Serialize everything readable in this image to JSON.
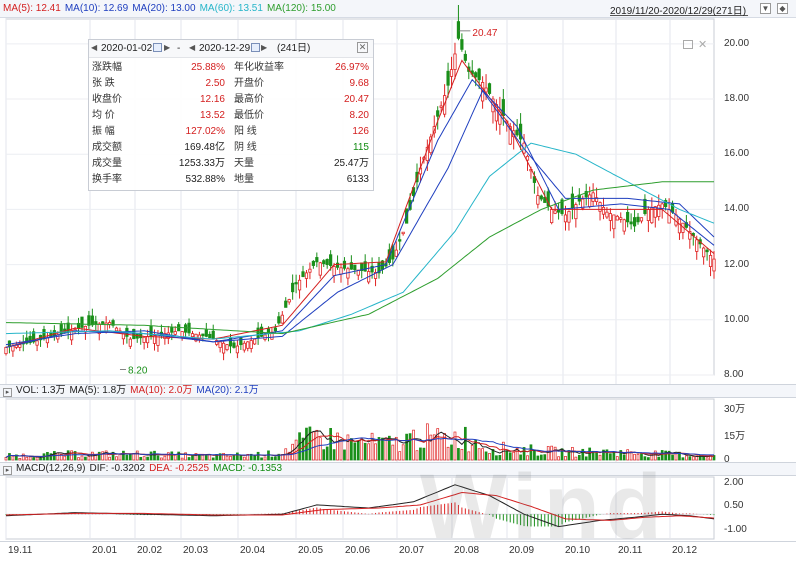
{
  "ma_legend": [
    {
      "label": "MA(5): 12.41",
      "color": "#d42020"
    },
    {
      "label": "MA(10): 12.69",
      "color": "#1f3fbf"
    },
    {
      "label": "MA(20): 13.00",
      "color": "#1f3fbf"
    },
    {
      "label": "MA(60): 13.51",
      "color": "#26b5c9"
    },
    {
      "label": "MA(120): 15.00",
      "color": "#2e9e2e"
    }
  ],
  "date_range": "2019/11/20-2020/12/29(271日)",
  "info_panel": {
    "start_date": "2020-01-02",
    "end_date": "2020-12-29",
    "separator": "-",
    "days": "(241日)",
    "rows": [
      {
        "l1": "涨跌幅",
        "v1": "25.88%",
        "c1": "red",
        "l2": "年化收益率",
        "v2": "26.97%",
        "c2": "red"
      },
      {
        "l1": "张  跌",
        "v1": "2.50",
        "c1": "red",
        "l2": "开盘价",
        "v2": "9.68",
        "c2": "red"
      },
      {
        "l1": "收盘价",
        "v1": "12.16",
        "c1": "red",
        "l2": "最高价",
        "v2": "20.47",
        "c2": "red"
      },
      {
        "l1": "均  价",
        "v1": "13.52",
        "c1": "red",
        "l2": "最低价",
        "v2": "8.20",
        "c2": "red"
      },
      {
        "l1": "振  幅",
        "v1": "127.02%",
        "c1": "red",
        "l2": "阳  线",
        "v2": "126",
        "c2": "red"
      },
      {
        "l1": "成交额",
        "v1": "169.48亿",
        "c1": "dark",
        "l2": "阴  线",
        "v2": "115",
        "c2": "green"
      },
      {
        "l1": "成交量",
        "v1": "1253.33万",
        "c1": "dark",
        "l2": "天量",
        "v2": "25.47万",
        "c2": "dark"
      },
      {
        "l1": "换手率",
        "v1": "532.88%",
        "c1": "dark",
        "l2": "地量",
        "v2": "6133",
        "c2": "dark"
      }
    ]
  },
  "vol_legend": [
    {
      "label": "VOL: 1.3万",
      "color": "#222"
    },
    {
      "label": "MA(5): 1.8万",
      "color": "#222"
    },
    {
      "label": "MA(10): 2.0万",
      "color": "#d42020"
    },
    {
      "label": "MA(20): 2.1万",
      "color": "#1f3fbf"
    }
  ],
  "macd_legend": [
    {
      "label": "MACD(12,26,9)",
      "color": "#222"
    },
    {
      "label": "DIF: -0.3202",
      "color": "#222"
    },
    {
      "label": "DEA: -0.2525",
      "color": "#d42020"
    },
    {
      "label": "MACD: -0.1353",
      "color": "#128c12"
    }
  ],
  "watermark": "Wind",
  "chart_data": {
    "type": "candlestick",
    "price_ticks": [
      "20.00",
      "18.00",
      "16.00",
      "14.00",
      "12.00",
      "10.00",
      "8.00"
    ],
    "price_tick_values": [
      20,
      18,
      16,
      14,
      12,
      10,
      8
    ],
    "price_ylim": [
      8,
      20.9
    ],
    "max_marker": "20.47",
    "min_marker": "8.20",
    "x_tick_labels": [
      "19.11",
      "20.01",
      "20.02",
      "20.03",
      "20.04",
      "20.05",
      "20.06",
      "20.07",
      "20.08",
      "20.09",
      "20.10",
      "20.11",
      "20.12"
    ],
    "vol_ticks": [
      "30万",
      "15万",
      "0"
    ],
    "vol_tick_values": [
      30,
      15,
      0
    ],
    "vol_ylim": [
      0,
      34
    ],
    "macd_ticks": [
      "2.00",
      "0.50",
      "-1.00"
    ],
    "macd_tick_values": [
      2,
      0.5,
      -1
    ],
    "macd_ylim": [
      -1.6,
      2.4
    ],
    "close_path": [
      [
        0,
        9.0
      ],
      [
        8,
        9.2
      ],
      [
        16,
        9.5
      ],
      [
        24,
        9.8
      ],
      [
        30,
        9.9
      ],
      [
        36,
        9.3
      ],
      [
        42,
        9.4
      ],
      [
        50,
        9.6
      ],
      [
        58,
        9.4
      ],
      [
        66,
        9.0
      ],
      [
        72,
        9.3
      ],
      [
        78,
        9.6
      ],
      [
        84,
        11.3
      ],
      [
        90,
        12.1
      ],
      [
        96,
        11.9
      ],
      [
        102,
        11.8
      ],
      [
        108,
        11.7
      ],
      [
        112,
        12.2
      ],
      [
        116,
        13.5
      ],
      [
        120,
        15.5
      ],
      [
        124,
        17.0
      ],
      [
        128,
        18.5
      ],
      [
        131,
        20.2
      ],
      [
        134,
        19.0
      ],
      [
        138,
        18.6
      ],
      [
        142,
        17.8
      ],
      [
        146,
        17.0
      ],
      [
        150,
        16.4
      ],
      [
        154,
        14.5
      ],
      [
        158,
        14.0
      ],
      [
        162,
        13.8
      ],
      [
        166,
        14.3
      ],
      [
        170,
        14.6
      ],
      [
        174,
        13.9
      ],
      [
        178,
        13.7
      ],
      [
        182,
        13.4
      ],
      [
        186,
        14.0
      ],
      [
        190,
        14.2
      ],
      [
        194,
        13.8
      ],
      [
        198,
        13.2
      ],
      [
        202,
        12.6
      ],
      [
        205,
        12.2
      ]
    ],
    "ma_series": [
      {
        "name": "MA(5)",
        "color": "#d42020",
        "values": [
          [
            0,
            9.0
          ],
          [
            20,
            9.7
          ],
          [
            40,
            9.4
          ],
          [
            60,
            9.3
          ],
          [
            80,
            9.8
          ],
          [
            95,
            12.0
          ],
          [
            110,
            12.1
          ],
          [
            125,
            17.2
          ],
          [
            132,
            19.4
          ],
          [
            145,
            17.2
          ],
          [
            158,
            14.0
          ],
          [
            175,
            14.0
          ],
          [
            190,
            14.0
          ],
          [
            205,
            12.4
          ]
        ]
      },
      {
        "name": "MA(10)",
        "color": "#1f3fbf",
        "values": [
          [
            0,
            9.0
          ],
          [
            20,
            9.6
          ],
          [
            40,
            9.5
          ],
          [
            60,
            9.2
          ],
          [
            80,
            9.6
          ],
          [
            95,
            11.6
          ],
          [
            110,
            12.0
          ],
          [
            125,
            16.5
          ],
          [
            135,
            18.7
          ],
          [
            148,
            17.0
          ],
          [
            160,
            14.0
          ],
          [
            178,
            14.2
          ],
          [
            192,
            14.0
          ],
          [
            205,
            12.7
          ]
        ]
      },
      {
        "name": "MA(20)",
        "color": "#1f3fbf",
        "values": [
          [
            0,
            9.1
          ],
          [
            20,
            9.5
          ],
          [
            40,
            9.6
          ],
          [
            60,
            9.2
          ],
          [
            80,
            9.4
          ],
          [
            96,
            11.0
          ],
          [
            112,
            12.0
          ],
          [
            128,
            15.5
          ],
          [
            138,
            18.3
          ],
          [
            150,
            16.2
          ],
          [
            162,
            14.4
          ],
          [
            180,
            14.4
          ],
          [
            195,
            14.2
          ],
          [
            205,
            13.0
          ]
        ]
      },
      {
        "name": "MA(60)",
        "color": "#26b5c9",
        "values": [
          [
            0,
            9.5
          ],
          [
            30,
            9.6
          ],
          [
            60,
            9.3
          ],
          [
            85,
            9.6
          ],
          [
            100,
            10.2
          ],
          [
            115,
            11.0
          ],
          [
            130,
            13.2
          ],
          [
            140,
            15.2
          ],
          [
            152,
            16.4
          ],
          [
            165,
            16.0
          ],
          [
            180,
            15.0
          ],
          [
            195,
            14.0
          ],
          [
            205,
            13.5
          ]
        ]
      },
      {
        "name": "MA(120)",
        "color": "#2e9e2e",
        "values": [
          [
            0,
            9.9
          ],
          [
            40,
            9.8
          ],
          [
            80,
            9.5
          ],
          [
            105,
            10.2
          ],
          [
            125,
            11.5
          ],
          [
            140,
            13.0
          ],
          [
            155,
            14.0
          ],
          [
            170,
            14.7
          ],
          [
            190,
            15.0
          ],
          [
            205,
            15.0
          ]
        ]
      }
    ],
    "vol_profile": [
      [
        0,
        2
      ],
      [
        20,
        3
      ],
      [
        40,
        3
      ],
      [
        60,
        2
      ],
      [
        78,
        3
      ],
      [
        84,
        8
      ],
      [
        90,
        12
      ],
      [
        100,
        9
      ],
      [
        112,
        8
      ],
      [
        120,
        12
      ],
      [
        126,
        10
      ],
      [
        132,
        12
      ],
      [
        140,
        6
      ],
      [
        150,
        5
      ],
      [
        162,
        4
      ],
      [
        175,
        4
      ],
      [
        190,
        3
      ],
      [
        205,
        2
      ]
    ],
    "macd_dif": [
      [
        0,
        -0.1
      ],
      [
        20,
        0.1
      ],
      [
        40,
        0.0
      ],
      [
        60,
        -0.1
      ],
      [
        80,
        0.0
      ],
      [
        90,
        0.6
      ],
      [
        105,
        0.4
      ],
      [
        118,
        0.8
      ],
      [
        130,
        1.9
      ],
      [
        140,
        1.2
      ],
      [
        150,
        0.0
      ],
      [
        160,
        -0.8
      ],
      [
        172,
        -0.4
      ],
      [
        182,
        -0.2
      ],
      [
        190,
        0.0
      ],
      [
        198,
        -0.1
      ],
      [
        205,
        -0.3
      ]
    ],
    "macd_dea": [
      [
        0,
        -0.05
      ],
      [
        20,
        0.05
      ],
      [
        40,
        0.05
      ],
      [
        60,
        -0.05
      ],
      [
        80,
        -0.05
      ],
      [
        92,
        0.3
      ],
      [
        108,
        0.4
      ],
      [
        120,
        0.6
      ],
      [
        132,
        1.4
      ],
      [
        142,
        1.2
      ],
      [
        152,
        0.5
      ],
      [
        162,
        -0.3
      ],
      [
        175,
        -0.4
      ],
      [
        185,
        -0.2
      ],
      [
        195,
        -0.1
      ],
      [
        205,
        -0.25
      ]
    ]
  }
}
